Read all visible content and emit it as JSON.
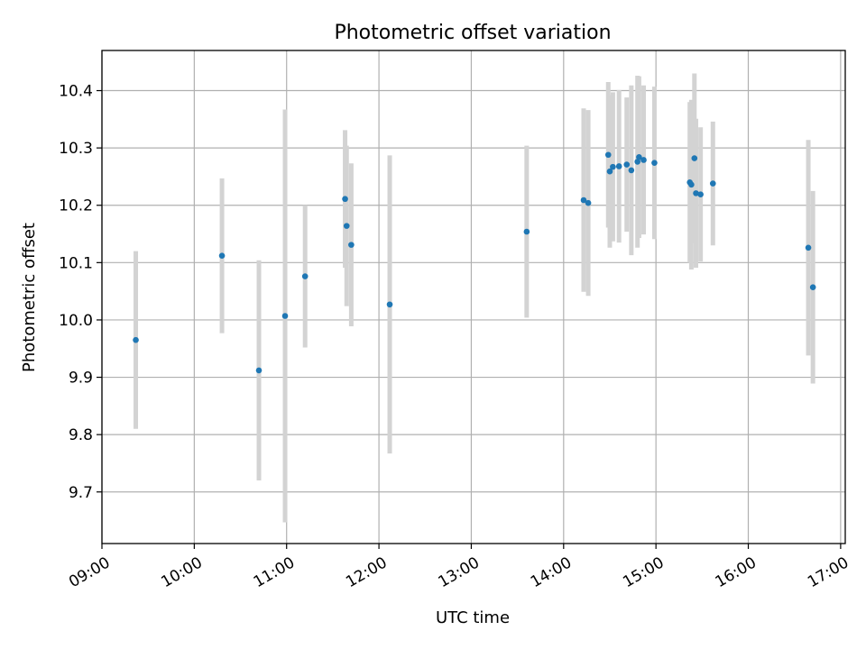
{
  "chart_data": {
    "type": "scatter",
    "title": "Photometric offset variation",
    "xlabel": "UTC time",
    "ylabel": "Photometric offset",
    "xlim": [
      "09:00",
      "17:03"
    ],
    "ylim": [
      9.61,
      10.47
    ],
    "x_ticks": [
      "09:00",
      "10:00",
      "11:00",
      "12:00",
      "13:00",
      "14:00",
      "15:00",
      "16:00",
      "17:00"
    ],
    "y_ticks": [
      9.7,
      9.8,
      9.9,
      10.0,
      10.1,
      10.2,
      10.3,
      10.4
    ],
    "grid": true,
    "colors": {
      "point": "#1f77b4",
      "errorbar": "#d3d3d3",
      "grid": "#b0b0b0"
    },
    "points": [
      {
        "x": "09:22",
        "y": 9.965,
        "err": 0.155
      },
      {
        "x": "10:18",
        "y": 10.112,
        "err": 0.135
      },
      {
        "x": "10:42",
        "y": 9.912,
        "err": 0.192
      },
      {
        "x": "10:59",
        "y": 10.007,
        "err": 0.36
      },
      {
        "x": "11:12",
        "y": 10.076,
        "err": 0.124
      },
      {
        "x": "11:38",
        "y": 10.211,
        "err": 0.12
      },
      {
        "x": "11:39",
        "y": 10.164,
        "err": 0.14
      },
      {
        "x": "11:42",
        "y": 10.131,
        "err": 0.142
      },
      {
        "x": "12:07",
        "y": 10.027,
        "err": 0.26
      },
      {
        "x": "13:36",
        "y": 10.154,
        "err": 0.15
      },
      {
        "x": "14:13",
        "y": 10.209,
        "err": 0.16
      },
      {
        "x": "14:16",
        "y": 10.204,
        "err": 0.162
      },
      {
        "x": "14:29",
        "y": 10.288,
        "err": 0.127
      },
      {
        "x": "14:30",
        "y": 10.259,
        "err": 0.133
      },
      {
        "x": "14:32",
        "y": 10.267,
        "err": 0.13
      },
      {
        "x": "14:36",
        "y": 10.268,
        "err": 0.133
      },
      {
        "x": "14:41",
        "y": 10.271,
        "err": 0.117
      },
      {
        "x": "14:44",
        "y": 10.261,
        "err": 0.148
      },
      {
        "x": "14:48",
        "y": 10.276,
        "err": 0.15
      },
      {
        "x": "14:49",
        "y": 10.284,
        "err": 0.141
      },
      {
        "x": "14:52",
        "y": 10.279,
        "err": 0.13
      },
      {
        "x": "14:59",
        "y": 10.274,
        "err": 0.133
      },
      {
        "x": "15:22",
        "y": 10.24,
        "err": 0.14
      },
      {
        "x": "15:23",
        "y": 10.236,
        "err": 0.148
      },
      {
        "x": "15:25",
        "y": 10.282,
        "err": 0.148
      },
      {
        "x": "15:26",
        "y": 10.221,
        "err": 0.13
      },
      {
        "x": "15:29",
        "y": 10.219,
        "err": 0.117
      },
      {
        "x": "15:37",
        "y": 10.238,
        "err": 0.108
      },
      {
        "x": "16:39",
        "y": 10.126,
        "err": 0.188
      },
      {
        "x": "16:42",
        "y": 10.057,
        "err": 0.168
      }
    ]
  }
}
